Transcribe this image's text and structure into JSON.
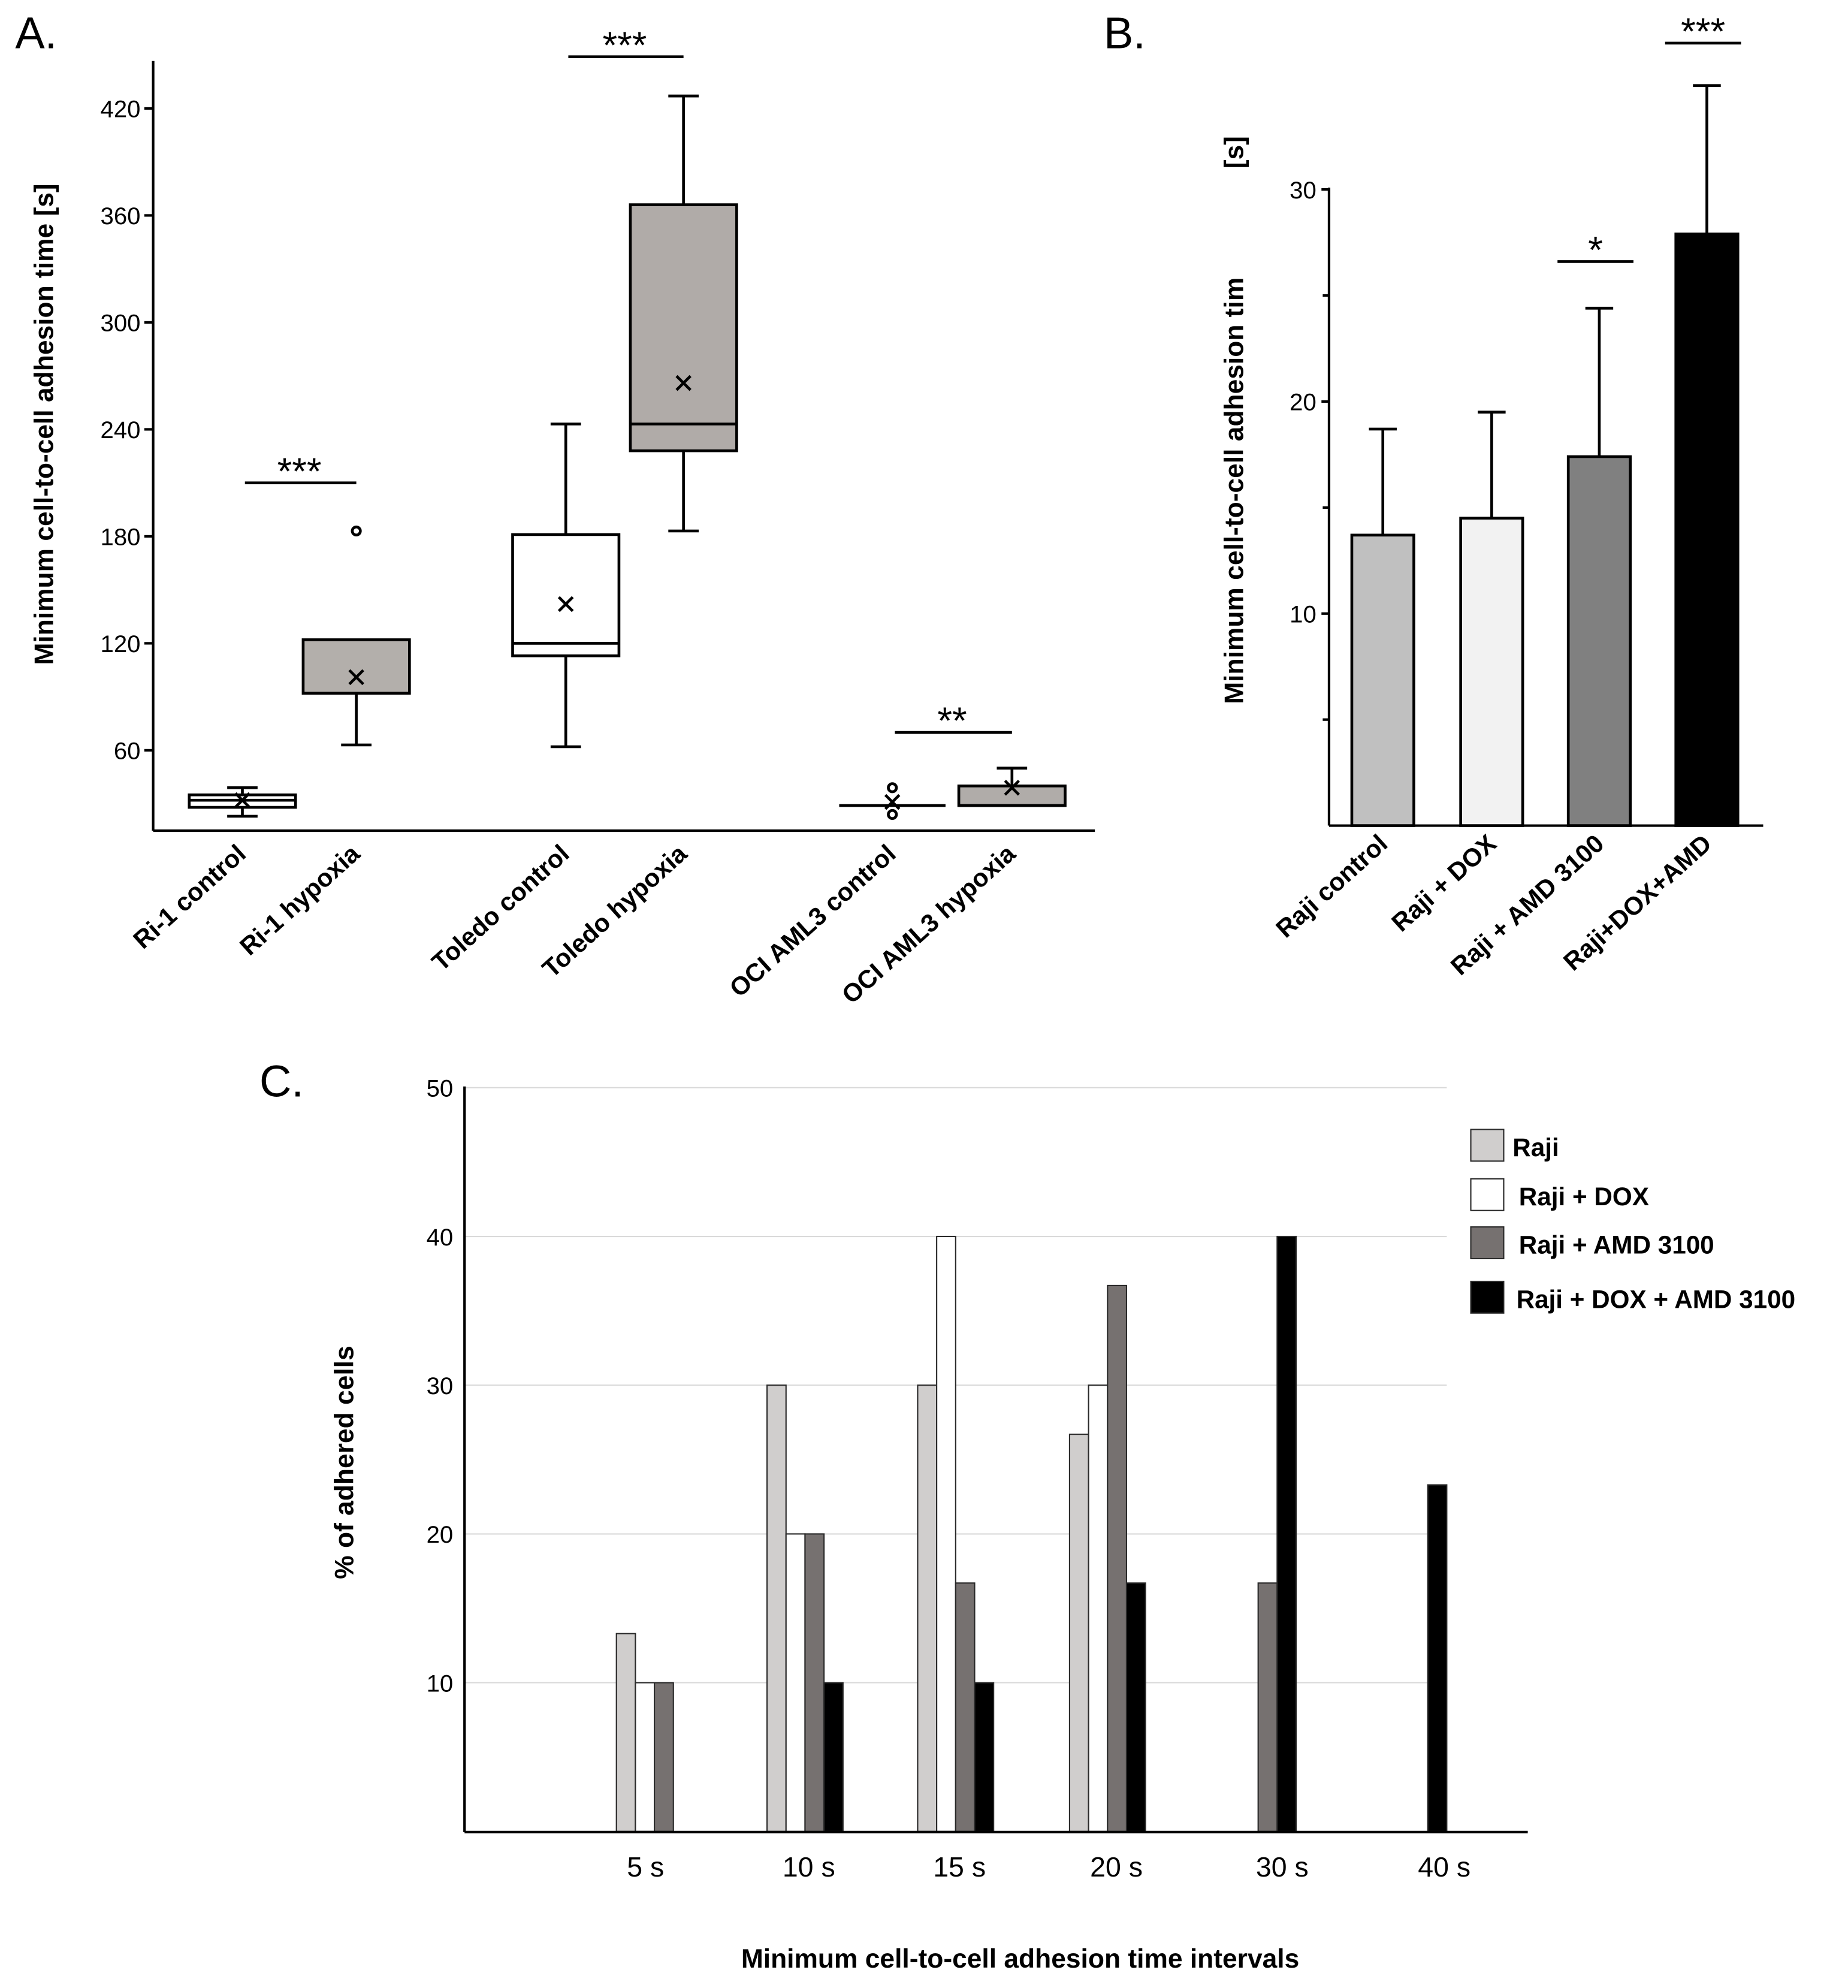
{
  "chart_data": [
    {
      "panel_label": "A.",
      "type": "box",
      "ylabel": "Minimum cell-to-cell adhesion time [s]",
      "ylim": [
        18,
        447
      ],
      "yticks": [
        60,
        120,
        180,
        240,
        300,
        360,
        420
      ],
      "categories": [
        "Ri-1 control",
        "Ri-1 hypoxia",
        "Toledo control",
        "Toledo hypoxia",
        "OCI AML3 control",
        "OCI AML3 hypoxia"
      ],
      "box_colors": [
        "#ffffff",
        "#b3afab",
        "#ffffff",
        "#b0aba8",
        "#ffffff",
        "#b0aca9"
      ],
      "boxes": [
        {
          "min": 23,
          "q1": 28,
          "median": 32,
          "q3": 35,
          "max": 39,
          "mean": 32,
          "outliers": []
        },
        {
          "min": 63,
          "q1": 92,
          "median": 92,
          "q3": 122,
          "max": 122,
          "mean": 101,
          "outliers": [
            183
          ]
        },
        {
          "min": 62,
          "q1": 113,
          "median": 120,
          "q3": 181,
          "max": 243,
          "mean": 142,
          "outliers": []
        },
        {
          "min": 183,
          "q1": 228,
          "median": 243,
          "q3": 366,
          "max": 427,
          "mean": 266,
          "outliers": []
        },
        {
          "min": 29,
          "q1": 29,
          "median": 29,
          "q3": 29,
          "max": 29,
          "mean": 31,
          "outliers": [
            39,
            24
          ]
        },
        {
          "min": 29,
          "q1": 29,
          "median": 29,
          "q3": 40,
          "max": 50,
          "mean": 39,
          "outliers": []
        }
      ],
      "significance": [
        {
          "between": [
            0,
            1
          ],
          "label": "***",
          "y": 210
        },
        {
          "between": [
            2,
            3
          ],
          "label": "***",
          "y": 449
        },
        {
          "between": [
            4,
            5
          ],
          "label": "**",
          "y": 70
        }
      ]
    },
    {
      "panel_label": "B.",
      "type": "bar",
      "ylabel": "Minimum cell-to-cell adhesion tim",
      "ylabel_unit": "[s]",
      "ylim": [
        0,
        30
      ],
      "yticks": [
        10,
        20,
        30
      ],
      "minor_ticks": [
        5,
        15,
        25
      ],
      "categories": [
        "Raji control",
        "Raji + DOX",
        "Raji + AMD 3100",
        "Raji+DOX+AMD"
      ],
      "values": [
        13.7,
        14.5,
        17.4,
        27.9
      ],
      "errors": [
        5.0,
        5.0,
        7.0,
        7.0
      ],
      "colors": [
        "#c0c0c0",
        "#f2f2f2",
        "#808080",
        "#000000"
      ],
      "significance": [
        {
          "bar": 2,
          "label": "*",
          "y": 26.6
        },
        {
          "bar": 3,
          "label": "***",
          "y": 36.9
        }
      ]
    },
    {
      "panel_label": "C.",
      "type": "bar",
      "ylabel": "% of adhered cells",
      "xlabel": "Minimum cell-to-cell adhesion time intervals",
      "ylim": [
        0,
        50
      ],
      "yticks": [
        10,
        20,
        30,
        40,
        50
      ],
      "grid": true,
      "categories": [
        "5 s",
        "10 s",
        "15 s",
        "20 s",
        "30 s",
        "40 s"
      ],
      "series": [
        {
          "name": "Raji",
          "color": "#d0cecd",
          "values": [
            13.3,
            30,
            30,
            26.7,
            0,
            0
          ]
        },
        {
          "name": "Raji + DOX",
          "color": "#ffffff",
          "values": [
            10,
            20,
            40,
            30,
            0,
            0
          ]
        },
        {
          "name": "Raji + AMD 3100",
          "color": "#767170",
          "values": [
            10,
            20,
            16.7,
            36.7,
            16.7,
            0
          ]
        },
        {
          "name": "Raji + DOX + AMD 3100",
          "color": "#000000",
          "values": [
            0,
            10,
            10,
            16.7,
            40,
            23.3
          ]
        }
      ]
    }
  ]
}
